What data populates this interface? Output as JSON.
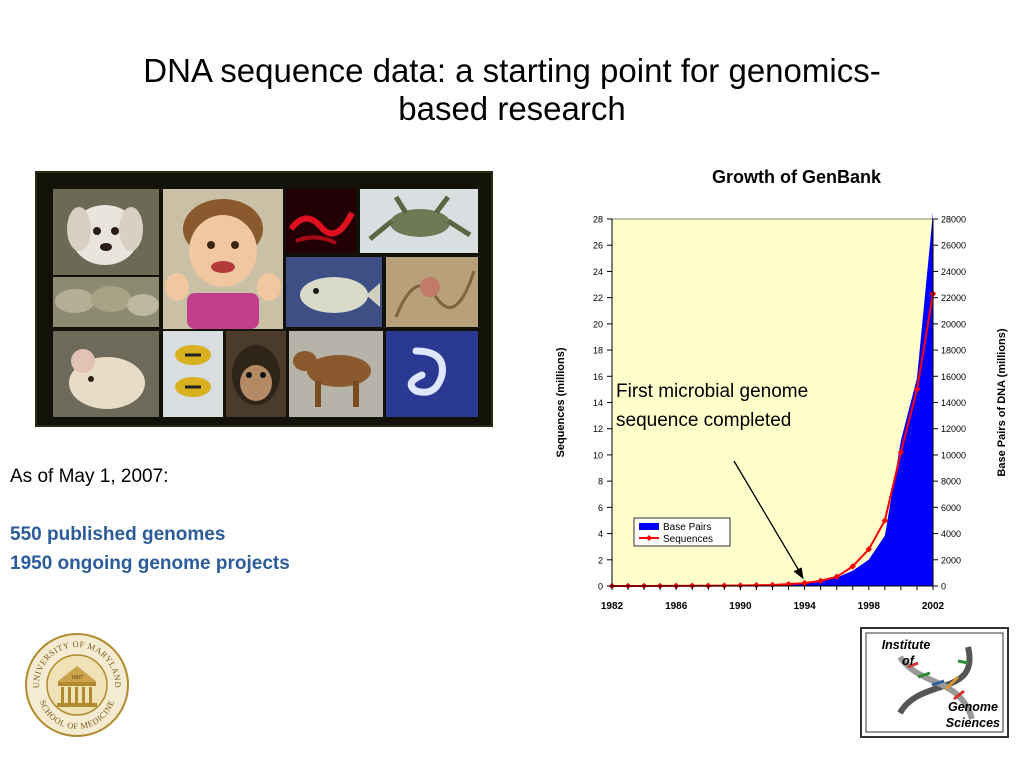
{
  "slide": {
    "title_line1": "DNA sequence data:  a starting point for genomics-",
    "title_line2": "based research"
  },
  "info": {
    "date_line": "As of May 1, 2007:",
    "genomes_line": "550 published genomes",
    "projects_line": "1950 ongoing genome projects"
  },
  "annotation": {
    "line1": "First microbial genome",
    "line2": "sequence completed"
  },
  "logos": {
    "seal_top": "UNIVERSITY OF MARYLAND",
    "seal_bottom": "SCHOOL OF MEDICINE",
    "seal_year": "1807",
    "igs_line1": "Institute",
    "igs_line2": "of",
    "igs_line3": "Genome",
    "igs_line4": "Sciences"
  },
  "colors": {
    "title_blue": "#2c5d9a",
    "plot_bg": "#ffffcc",
    "area_blue": "#0000ff",
    "line_red": "#ff0000"
  },
  "chart_data": {
    "type": "area",
    "title": "Growth of GenBank",
    "ylabel": "Sequences (millions)",
    "y2label": "Base Pairs of DNA (millions)",
    "xlabel": "",
    "x_ticks": [
      1982,
      1986,
      1990,
      1994,
      1998,
      2002
    ],
    "y_ticks": [
      0,
      2,
      4,
      6,
      8,
      10,
      12,
      14,
      16,
      18,
      20,
      22,
      24,
      26,
      28
    ],
    "y2_ticks": [
      0,
      2000,
      4000,
      6000,
      8000,
      10000,
      12000,
      14000,
      16000,
      18000,
      20000,
      22000,
      24000,
      26000,
      28000
    ],
    "ylim": [
      0,
      28
    ],
    "y2lim": [
      0,
      28000
    ],
    "xlim": [
      1982,
      2002
    ],
    "legend_position": "bottom-left",
    "grid": false,
    "series": [
      {
        "name": "Base Pairs",
        "kind": "area",
        "axis": "right",
        "x": [
          1982,
          1983,
          1984,
          1985,
          1986,
          1987,
          1988,
          1989,
          1990,
          1991,
          1992,
          1993,
          1994,
          1995,
          1996,
          1997,
          1998,
          1999,
          2000,
          2001,
          2002
        ],
        "values": [
          1,
          2,
          3,
          5,
          9,
          15,
          25,
          34,
          49,
          71,
          101,
          157,
          217,
          384,
          652,
          1160,
          2009,
          3841,
          11101,
          15850,
          28507
        ]
      },
      {
        "name": "Sequences",
        "kind": "line",
        "axis": "left",
        "x": [
          1982,
          1983,
          1984,
          1985,
          1986,
          1987,
          1988,
          1989,
          1990,
          1991,
          1992,
          1993,
          1994,
          1995,
          1996,
          1997,
          1998,
          1999,
          2000,
          2001,
          2002
        ],
        "values": [
          0.001,
          0.002,
          0.004,
          0.006,
          0.01,
          0.015,
          0.02,
          0.03,
          0.04,
          0.06,
          0.08,
          0.14,
          0.22,
          0.4,
          0.7,
          1.5,
          2.8,
          5.0,
          10.2,
          15.0,
          22.3
        ]
      }
    ]
  }
}
